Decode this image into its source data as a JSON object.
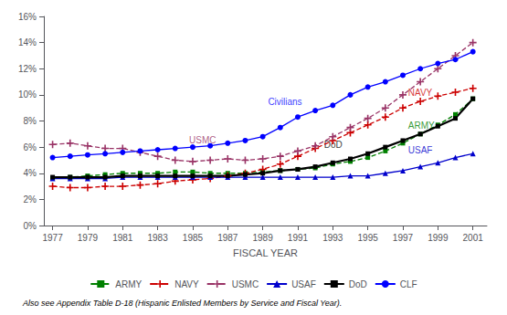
{
  "chart_data": {
    "type": "line",
    "x": [
      1977,
      1978,
      1979,
      1980,
      1981,
      1982,
      1983,
      1984,
      1985,
      1986,
      1987,
      1988,
      1989,
      1990,
      1991,
      1992,
      1993,
      1994,
      1995,
      1996,
      1997,
      1998,
      1999,
      2000,
      2001
    ],
    "series": [
      {
        "name": "ARMY",
        "color": "#008000",
        "marker": "square",
        "line_style": "dashed",
        "values": [
          0.036,
          0.037,
          0.038,
          0.039,
          0.04,
          0.04,
          0.04,
          0.041,
          0.041,
          0.04,
          0.04,
          0.04,
          0.041,
          0.042,
          0.043,
          0.044,
          0.047,
          0.049,
          0.052,
          0.057,
          0.063,
          0.07,
          0.077,
          0.085,
          0.097
        ]
      },
      {
        "name": "NAVY",
        "color": "#cc0000",
        "marker": "plus",
        "line_style": "dashed",
        "values": [
          0.03,
          0.029,
          0.029,
          0.03,
          0.03,
          0.031,
          0.032,
          0.034,
          0.035,
          0.036,
          0.038,
          0.04,
          0.043,
          0.047,
          0.053,
          0.059,
          0.065,
          0.071,
          0.077,
          0.083,
          0.09,
          0.095,
          0.099,
          0.102,
          0.105
        ]
      },
      {
        "name": "USMC",
        "color": "#993366",
        "marker": "plus",
        "line_style": "dashed",
        "values": [
          0.062,
          0.063,
          0.061,
          0.059,
          0.059,
          0.056,
          0.053,
          0.05,
          0.049,
          0.05,
          0.051,
          0.05,
          0.051,
          0.053,
          0.057,
          0.061,
          0.068,
          0.075,
          0.082,
          0.09,
          0.1,
          0.11,
          0.12,
          0.13,
          0.14
        ]
      },
      {
        "name": "USAF",
        "color": "#0000cc",
        "marker": "triangle",
        "line_style": "solid",
        "values": [
          0.036,
          0.036,
          0.036,
          0.036,
          0.037,
          0.037,
          0.037,
          0.037,
          0.037,
          0.037,
          0.037,
          0.037,
          0.037,
          0.037,
          0.037,
          0.037,
          0.037,
          0.038,
          0.038,
          0.04,
          0.042,
          0.045,
          0.048,
          0.052,
          0.055
        ]
      },
      {
        "name": "DoD",
        "color": "#000000",
        "marker": "square",
        "line_style": "solid",
        "values": [
          0.037,
          0.037,
          0.037,
          0.037,
          0.038,
          0.038,
          0.038,
          0.038,
          0.038,
          0.038,
          0.038,
          0.039,
          0.04,
          0.042,
          0.043,
          0.045,
          0.048,
          0.051,
          0.055,
          0.06,
          0.065,
          0.07,
          0.076,
          0.082,
          0.097
        ]
      },
      {
        "name": "CLF",
        "color": "#0000ff",
        "marker": "circle",
        "line_style": "solid",
        "values": [
          0.052,
          0.053,
          0.054,
          0.055,
          0.056,
          0.057,
          0.058,
          0.059,
          0.06,
          0.061,
          0.063,
          0.065,
          0.068,
          0.075,
          0.083,
          0.088,
          0.092,
          0.1,
          0.106,
          0.11,
          0.115,
          0.12,
          0.124,
          0.127,
          0.133
        ]
      }
    ],
    "annotations": [
      {
        "text": "Civilians",
        "x": 1989.3,
        "y": 0.0915,
        "color": "#0000ff"
      },
      {
        "text": "NAVY",
        "x": 1997.3,
        "y": 0.098,
        "color": "#cc0000"
      },
      {
        "text": "USMC",
        "x": 1984.8,
        "y": 0.062,
        "color": "#993366"
      },
      {
        "text": "ARMY",
        "x": 1997.3,
        "y": 0.073,
        "color": "#008000"
      },
      {
        "text": "DoD",
        "x": 1992.5,
        "y": 0.058,
        "color": "#000000"
      },
      {
        "text": "USAF",
        "x": 1997.3,
        "y": 0.054,
        "color": "#0000cc"
      }
    ],
    "xlabel": "FISCAL YEAR",
    "xlim": [
      1976.5,
      2001.8
    ],
    "xticks": [
      1977,
      1979,
      1981,
      1983,
      1985,
      1987,
      1989,
      1991,
      1993,
      1995,
      1997,
      1999,
      2001
    ],
    "ylim": [
      0.0,
      0.16
    ],
    "yticks": [
      {
        "value": 0.0,
        "label": "0%"
      },
      {
        "value": 0.02,
        "label": "2%"
      },
      {
        "value": 0.04,
        "label": "4%"
      },
      {
        "value": 0.06,
        "label": "6%"
      },
      {
        "value": 0.08,
        "label": "8%"
      },
      {
        "value": 0.1,
        "label": "10%"
      },
      {
        "value": 0.12,
        "label": "12%"
      },
      {
        "value": 0.14,
        "label": "14%"
      },
      {
        "value": 0.16,
        "label": "16%"
      }
    ],
    "footnote": "Also see Appendix Table D-18 (Hispanic Enlisted Members by Service and Fiscal Year).",
    "grid": false,
    "legend": "bottom"
  }
}
